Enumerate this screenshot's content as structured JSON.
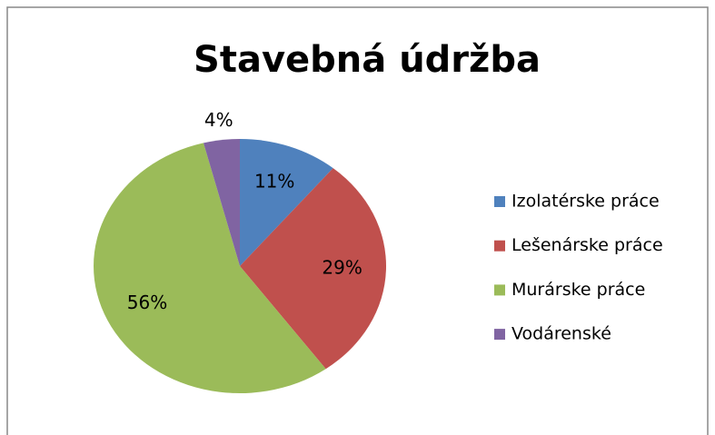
{
  "chart_data": {
    "type": "pie",
    "title": "Stavebná údržba",
    "categories": [
      "Izolatérske práce",
      "Lešenárske práce",
      "Murárske práce",
      "Vodárenské"
    ],
    "values": [
      11,
      29,
      56,
      4
    ],
    "value_labels": [
      "11%",
      "29%",
      "56%",
      "4%"
    ],
    "colors": [
      "#4f81bd",
      "#c0504d",
      "#9bbb59",
      "#8064a2"
    ],
    "legend": "right"
  }
}
